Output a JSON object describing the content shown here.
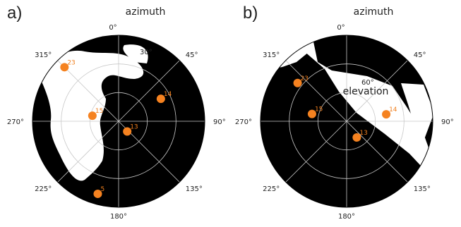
{
  "chart_data": [
    {
      "type": "scatter",
      "panel_label": "a)",
      "title": "azimuth",
      "projection": "polar",
      "theta_zero": "N",
      "theta_direction": "clockwise",
      "azimuth_ticks": [
        "0°",
        "45°",
        "90°",
        "135°",
        "180°",
        "225°",
        "270°",
        "315°"
      ],
      "radial_label": "30°",
      "radial_axis": "",
      "grid": true,
      "dense_scatter": "black points covering most of the sky except a large white gap on the north-west side",
      "points": [
        {
          "label": "23",
          "azimuth": 315,
          "elevation": 10
        },
        {
          "label": "14",
          "azimuth": 62,
          "elevation": 40
        },
        {
          "label": "15",
          "azimuth": 282,
          "elevation": 62
        },
        {
          "label": "13",
          "azimuth": 140,
          "elevation": 76
        },
        {
          "label": "5",
          "azimuth": 196,
          "elevation": 11
        }
      ]
    },
    {
      "type": "scatter",
      "panel_label": "b)",
      "title": "azimuth",
      "projection": "polar",
      "theta_zero": "N",
      "theta_direction": "clockwise",
      "azimuth_ticks": [
        "0°",
        "45°",
        "90°",
        "135°",
        "180°",
        "225°",
        "270°",
        "315°"
      ],
      "radial_label": "60°",
      "radial_axis": "elevation",
      "grid": true,
      "dense_scatter": "black points in two bands (north arc and south-west band) with a diagonal white gap from north-west to south-east",
      "points": [
        {
          "label": "23",
          "azimuth": 308,
          "elevation": 25
        },
        {
          "label": "14",
          "azimuth": 80,
          "elevation": 48
        },
        {
          "label": "15",
          "azimuth": 282,
          "elevation": 53
        },
        {
          "label": "13",
          "azimuth": 148,
          "elevation": 70
        }
      ]
    }
  ]
}
